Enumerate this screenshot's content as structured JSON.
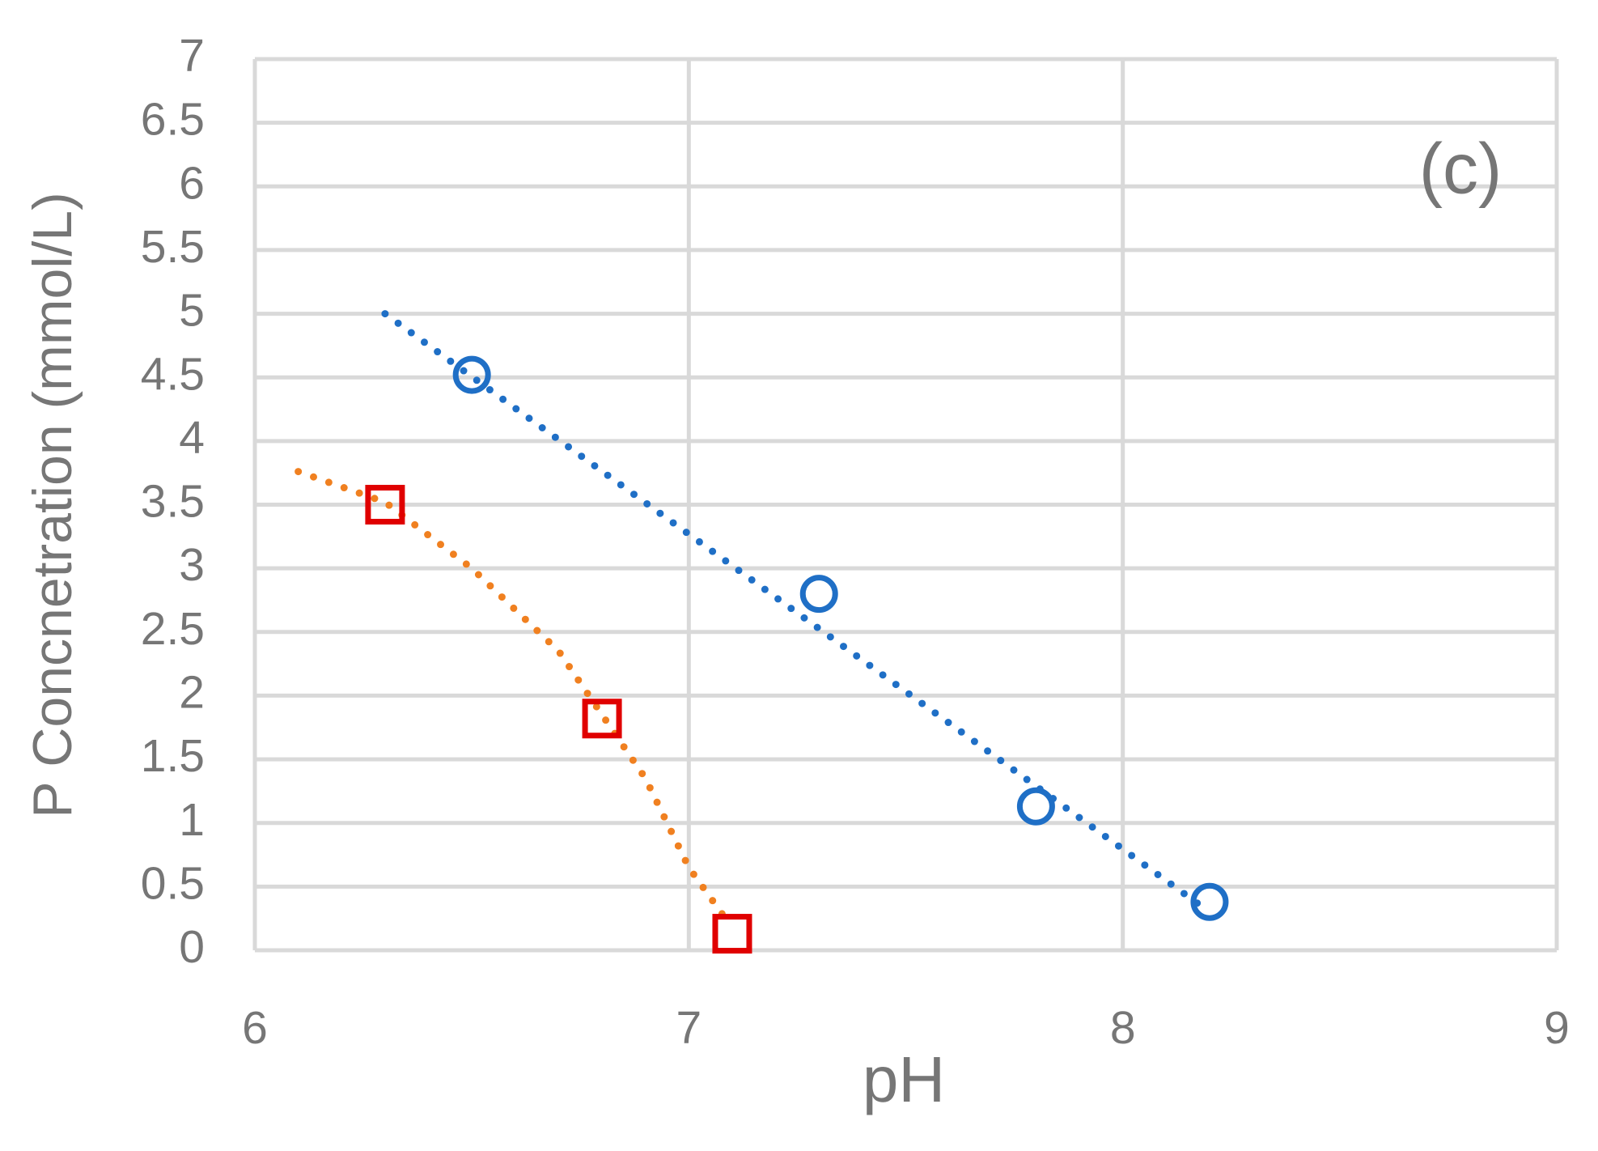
{
  "chart_data": {
    "type": "scatter",
    "x_label": "pH",
    "y_label": "P Concnetration (mmol/L)",
    "annotation": "(c)",
    "xlim": [
      6,
      9
    ],
    "xticks": [
      6,
      7,
      8,
      9
    ],
    "ylim": [
      0,
      7
    ],
    "yticks": [
      0,
      0.5,
      1,
      1.5,
      2,
      2.5,
      3,
      3.5,
      4,
      4.5,
      5,
      5.5,
      6,
      6.5,
      7
    ],
    "grid": true,
    "series": [
      {
        "color": "#1f6fc6",
        "marker": "none",
        "line": "dotted",
        "x": [
          6.3,
          8.2
        ],
        "values": [
          5.0,
          0.3
        ]
      },
      {
        "color": "#f08020",
        "marker": "none",
        "line": "dotted",
        "x": [
          6.1,
          6.3,
          6.5,
          6.7,
          6.9,
          7.0,
          7.08
        ],
        "values": [
          3.76,
          3.52,
          3.0,
          2.35,
          1.35,
          0.65,
          0.27
        ]
      },
      {
        "color": "#1f6fc6",
        "marker": "circle",
        "line": "none",
        "x": [
          6.5,
          7.3,
          7.8,
          8.2
        ],
        "values": [
          4.52,
          2.8,
          1.13,
          0.38
        ]
      },
      {
        "color": "#e00000",
        "marker": "square",
        "line": "none",
        "x": [
          6.3,
          6.8,
          7.1
        ],
        "values": [
          3.5,
          1.82,
          0.13
        ]
      }
    ]
  }
}
